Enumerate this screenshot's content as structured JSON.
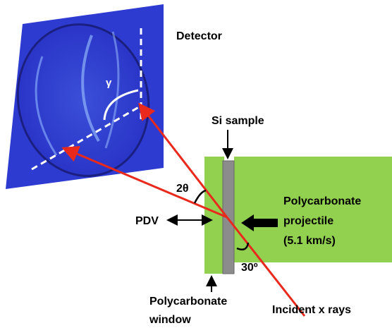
{
  "detector": {
    "label": "Detector",
    "angle": "γ"
  },
  "sample": {
    "label": "Si sample"
  },
  "two_theta": {
    "label": "2θ"
  },
  "pdv": {
    "label": "PDV"
  },
  "projectile": {
    "lines": [
      "Polycarbonate",
      "projectile",
      "(5.1 km/s)"
    ]
  },
  "incidence_angle": {
    "label": "30º"
  },
  "window": {
    "lines": [
      "Polycarbonate",
      "window"
    ]
  },
  "incident": {
    "label": "Incident x rays"
  }
}
